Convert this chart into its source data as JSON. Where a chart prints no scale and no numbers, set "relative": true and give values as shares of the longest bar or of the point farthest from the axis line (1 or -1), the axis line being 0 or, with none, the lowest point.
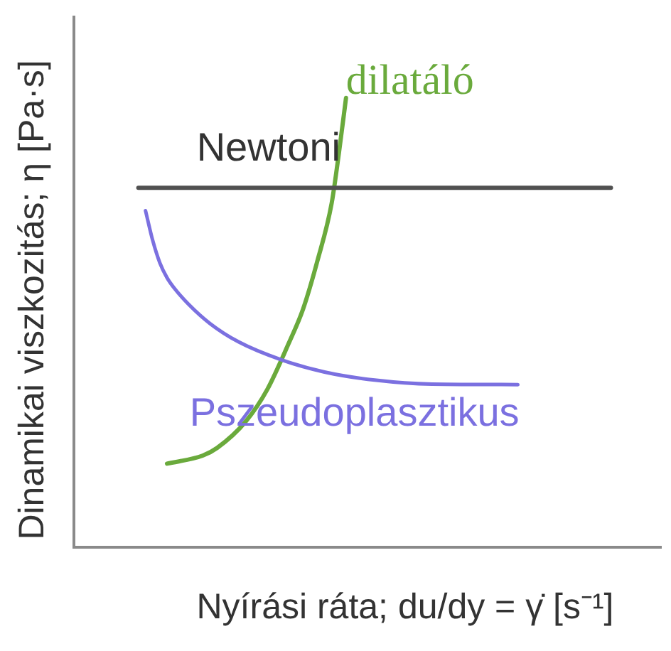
{
  "chart_data": {
    "type": "line",
    "xlabel": "Nyírási ráta; du/dy = γ̇ [s⁻¹]",
    "ylabel": "Dinamikai viszkozitás; η [Pa·s]",
    "relative": true,
    "tick_labels": false,
    "line_style": "solid",
    "categories": [
      null,
      null,
      null,
      null,
      null,
      null,
      null,
      null,
      null,
      null,
      null,
      null,
      null,
      null,
      null,
      null,
      null,
      null,
      null,
      null,
      null,
      null,
      null,
      null,
      null,
      null,
      null,
      null,
      null,
      null,
      null,
      null,
      null,
      null,
      null,
      null,
      null,
      null,
      null,
      null,
      null,
      null,
      null,
      null,
      null,
      null,
      null,
      null,
      null,
      null,
      null,
      null,
      null,
      null,
      null,
      null,
      null,
      null,
      null,
      null,
      null,
      null,
      null,
      null,
      null,
      null,
      null,
      null,
      null,
      null,
      null,
      null,
      null,
      null,
      null,
      null,
      null,
      null,
      null,
      null,
      null,
      null,
      null
    ],
    "series": [
      {
        "name": "Newtoni",
        "color": "#505050",
        "values": [
          null,
          null,
          null,
          null,
          null,
          null,
          null,
          null,
          null,
          0.8,
          null,
          null,
          null,
          null,
          null,
          null,
          null,
          null,
          null,
          null,
          null,
          null,
          null,
          null,
          null,
          null,
          null,
          null,
          null,
          null,
          null,
          null,
          null,
          null,
          null,
          null,
          null,
          null,
          null,
          null,
          null,
          null,
          null,
          null,
          null,
          null,
          null,
          null,
          null,
          null,
          null,
          null,
          null,
          null,
          null,
          null,
          null,
          null,
          null,
          null,
          null,
          null,
          null,
          null,
          null,
          null,
          null,
          null,
          null,
          null,
          null,
          null,
          null,
          null,
          null,
          0.8,
          null,
          null,
          null,
          null,
          null,
          null,
          null
        ]
      },
      {
        "name": "Pszeudoplasztikus",
        "color": "#7b70e0",
        "values": [
          null,
          null,
          null,
          null,
          null,
          null,
          null,
          null,
          null,
          null,
          0.749,
          0.683,
          0.633,
          0.6,
          0.577,
          null,
          0.541,
          null,
          null,
          0.498,
          null,
          null,
          null,
          0.457,
          null,
          null,
          null,
          null,
          null,
          0.417,
          null,
          null,
          null,
          null,
          null,
          0.39,
          null,
          null,
          null,
          null,
          null,
          null,
          0.372,
          null,
          null,
          null,
          null,
          null,
          null,
          null,
          0.363,
          null,
          null,
          null,
          null,
          null,
          null,
          null,
          null,
          null,
          null,
          null,
          0.362,
          null,
          null,
          null,
          null,
          null,
          null,
          null,
          null,
          null,
          null,
          null,
          null,
          null,
          null,
          null,
          null,
          null,
          null,
          null,
          null
        ]
      },
      {
        "name": "dilatáló",
        "color": "#6aaa3c",
        "values": [
          null,
          null,
          null,
          null,
          null,
          null,
          null,
          null,
          null,
          null,
          null,
          null,
          null,
          0.186,
          null,
          null,
          null,
          null,
          0.204,
          null,
          0.221,
          null,
          null,
          null,
          0.28,
          null,
          null,
          0.351,
          null,
          null,
          0.454,
          null,
          0.53,
          null,
          0.637,
          null,
          0.766,
          0.876,
          1,
          null,
          null,
          null,
          null,
          null,
          null,
          null,
          null,
          null,
          null,
          null,
          null,
          null,
          null,
          null,
          null,
          null,
          null,
          null,
          null,
          null,
          null,
          null,
          null,
          null,
          null,
          null,
          null,
          null,
          null,
          null,
          null,
          null,
          null,
          null,
          null,
          null,
          null,
          null,
          null,
          null,
          null,
          null,
          null
        ]
      }
    ]
  }
}
